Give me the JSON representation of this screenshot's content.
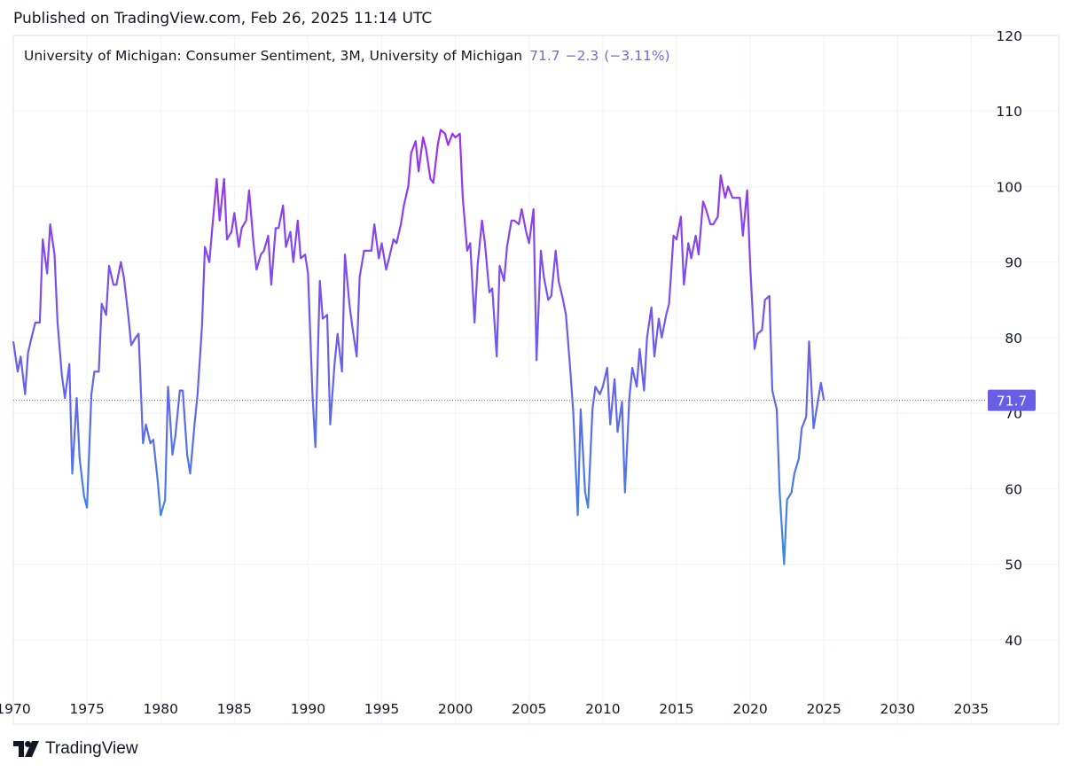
{
  "header": {
    "published": "Published on TradingView.com, Feb 26, 2025 11:14 UTC"
  },
  "legend": {
    "title": "University of Michigan: Consumer Sentiment, 3M, University of Michigan",
    "value": "71.7",
    "change": "−2.3",
    "change_pct": "(−3.11%)"
  },
  "footer": {
    "brand": "TradingView"
  },
  "colors": {
    "line_top": "#a02ef0",
    "line_bottom": "#3a8ae6",
    "tag": "#6a5ee8",
    "grid": "#f0f3fa"
  },
  "chart_data": {
    "type": "line",
    "title": "University of Michigan: Consumer Sentiment, 3M, University of Michigan",
    "last_value": 71.7,
    "last_value_label": "71.7",
    "ylim": [
      32,
      120
    ],
    "xlim": [
      1970,
      2036
    ],
    "yticks": [
      40,
      50,
      60,
      70,
      80,
      90,
      100,
      110,
      120
    ],
    "xticks": [
      1970,
      1975,
      1980,
      1985,
      1990,
      1995,
      2000,
      2005,
      2010,
      2015,
      2020,
      2025,
      2030,
      2035
    ],
    "xtick_labels": [
      "1970",
      "1975",
      "1980",
      "1985",
      "1990",
      "1995",
      "2000",
      "2005",
      "2010",
      "2015",
      "2020",
      "2025",
      "2030",
      "2035"
    ],
    "grid": true,
    "series": [
      {
        "x": [
          1970.0,
          1970.3,
          1970.5,
          1970.8,
          1971.0,
          1971.3,
          1971.5,
          1971.8,
          1972.0,
          1972.3,
          1972.5,
          1972.8,
          1973.0,
          1973.3,
          1973.5,
          1973.8,
          1974.0,
          1974.3,
          1974.5,
          1974.8,
          1975.0,
          1975.3,
          1975.5,
          1975.8,
          1976.0,
          1976.3,
          1976.5,
          1976.8,
          1977.0,
          1977.3,
          1977.5,
          1977.8,
          1978.0,
          1978.3,
          1978.5,
          1978.8,
          1979.0,
          1979.3,
          1979.5,
          1979.8,
          1980.0,
          1980.3,
          1980.5,
          1980.8,
          1981.0,
          1981.3,
          1981.5,
          1981.8,
          1982.0,
          1982.3,
          1982.5,
          1982.8,
          1983.0,
          1983.3,
          1983.5,
          1983.8,
          1984.0,
          1984.3,
          1984.5,
          1984.8,
          1985.0,
          1985.3,
          1985.5,
          1985.8,
          1986.0,
          1986.3,
          1986.5,
          1986.8,
          1987.0,
          1987.3,
          1987.5,
          1987.8,
          1988.0,
          1988.3,
          1988.5,
          1988.8,
          1989.0,
          1989.3,
          1989.5,
          1989.8,
          1990.0,
          1990.3,
          1990.5,
          1990.8,
          1991.0,
          1991.3,
          1991.5,
          1991.8,
          1992.0,
          1992.3,
          1992.5,
          1992.8,
          1993.0,
          1993.3,
          1993.5,
          1993.8,
          1994.0,
          1994.3,
          1994.5,
          1994.8,
          1995.0,
          1995.3,
          1995.5,
          1995.8,
          1996.0,
          1996.3,
          1996.5,
          1996.8,
          1997.0,
          1997.3,
          1997.5,
          1997.8,
          1998.0,
          1998.3,
          1998.5,
          1998.8,
          1999.0,
          1999.3,
          1999.5,
          1999.8,
          2000.0,
          2000.3,
          2000.5,
          2000.8,
          2001.0,
          2001.3,
          2001.5,
          2001.8,
          2002.0,
          2002.3,
          2002.5,
          2002.8,
          2003.0,
          2003.3,
          2003.5,
          2003.8,
          2004.0,
          2004.3,
          2004.5,
          2004.8,
          2005.0,
          2005.3,
          2005.5,
          2005.8,
          2006.0,
          2006.3,
          2006.5,
          2006.8,
          2007.0,
          2007.3,
          2007.5,
          2007.8,
          2008.0,
          2008.3,
          2008.5,
          2008.8,
          2009.0,
          2009.3,
          2009.5,
          2009.8,
          2010.0,
          2010.3,
          2010.5,
          2010.8,
          2011.0,
          2011.3,
          2011.5,
          2011.8,
          2012.0,
          2012.3,
          2012.5,
          2012.8,
          2013.0,
          2013.3,
          2013.5,
          2013.8,
          2014.0,
          2014.3,
          2014.5,
          2014.8,
          2015.0,
          2015.3,
          2015.5,
          2015.8,
          2016.0,
          2016.3,
          2016.5,
          2016.8,
          2017.0,
          2017.3,
          2017.5,
          2017.8,
          2018.0,
          2018.3,
          2018.5,
          2018.8,
          2019.0,
          2019.3,
          2019.5,
          2019.8,
          2020.0,
          2020.3,
          2020.5,
          2020.8,
          2021.0,
          2021.3,
          2021.5,
          2021.8,
          2022.0,
          2022.3,
          2022.5,
          2022.8,
          2023.0,
          2023.3,
          2023.5,
          2023.8,
          2024.0,
          2024.3,
          2024.5,
          2024.8,
          2025.0
        ],
        "values": [
          79.5,
          75.5,
          77.5,
          72.5,
          78.0,
          80.5,
          82.0,
          82.0,
          93.0,
          88.5,
          95.0,
          91.0,
          82.0,
          75.0,
          72.0,
          76.5,
          62.0,
          72.0,
          64.0,
          59.0,
          57.5,
          72.5,
          75.5,
          75.5,
          84.5,
          83.0,
          89.5,
          87.0,
          87.0,
          90.0,
          88.0,
          83.0,
          79.0,
          80.0,
          80.5,
          66.0,
          68.5,
          66.0,
          66.5,
          61.0,
          56.5,
          58.5,
          73.5,
          64.5,
          67.0,
          73.0,
          73.0,
          64.5,
          62.0,
          68.5,
          72.5,
          81.5,
          92.0,
          90.0,
          94.5,
          101.0,
          95.5,
          101.0,
          93.0,
          94.0,
          96.5,
          92.0,
          94.5,
          95.5,
          99.5,
          92.5,
          89.0,
          91.0,
          91.5,
          93.5,
          87.0,
          94.5,
          94.5,
          97.5,
          92.0,
          94.0,
          90.0,
          95.5,
          90.5,
          91.0,
          88.5,
          72.5,
          65.5,
          87.5,
          82.5,
          83.0,
          68.5,
          76.5,
          80.5,
          75.5,
          91.0,
          84.5,
          81.5,
          77.5,
          88.0,
          91.5,
          91.5,
          91.5,
          95.0,
          90.5,
          92.5,
          89.0,
          90.5,
          93.0,
          92.5,
          95.0,
          97.5,
          100.0,
          104.5,
          106.0,
          102.0,
          106.5,
          105.0,
          101.0,
          100.5,
          105.5,
          107.5,
          107.0,
          105.5,
          107.0,
          106.5,
          107.0,
          98.5,
          91.5,
          92.5,
          82.0,
          89.5,
          95.5,
          92.5,
          86.0,
          86.5,
          77.5,
          89.5,
          87.5,
          92.0,
          95.5,
          95.5,
          95.0,
          97.0,
          94.0,
          92.5,
          97.0,
          77.0,
          91.5,
          88.0,
          85.0,
          85.5,
          91.5,
          87.5,
          85.0,
          83.0,
          75.5,
          70.0,
          56.5,
          70.5,
          59.5,
          57.5,
          70.5,
          73.5,
          72.5,
          73.5,
          76.0,
          68.5,
          74.5,
          67.5,
          71.5,
          59.5,
          72.0,
          76.0,
          73.5,
          78.5,
          73.0,
          80.0,
          84.0,
          77.5,
          82.5,
          80.0,
          83.0,
          84.5,
          93.5,
          93.0,
          96.0,
          87.0,
          92.5,
          90.5,
          93.5,
          91.0,
          98.0,
          97.0,
          95.0,
          95.0,
          96.0,
          101.5,
          98.5,
          100.0,
          98.5,
          98.5,
          98.5,
          93.5,
          99.5,
          89.5,
          78.5,
          80.5,
          81.0,
          85.0,
          85.5,
          73.0,
          70.5,
          59.5,
          50.0,
          58.5,
          59.5,
          62.0,
          64.0,
          68.0,
          69.5,
          79.5,
          68.0,
          70.5,
          74.0,
          71.7
        ]
      }
    ]
  }
}
